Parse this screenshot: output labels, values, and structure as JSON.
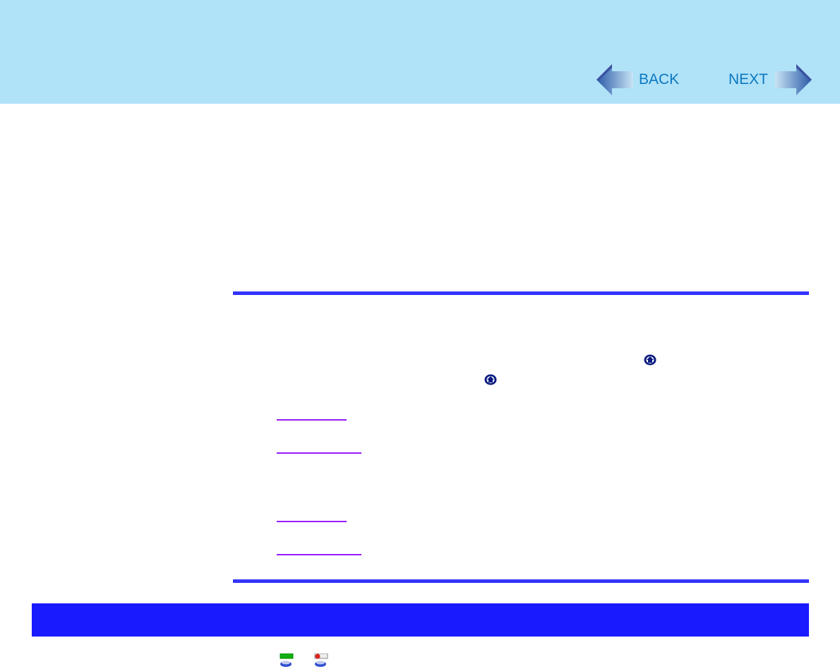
{
  "header": {
    "background": "#b0e2f8"
  },
  "nav": {
    "back_label": "BACK",
    "next_label": "NEXT",
    "text_color": "#0a78c0"
  },
  "icons": [
    "home-icon",
    "home-icon",
    "battery-full-icon",
    "battery-error-icon"
  ],
  "colors": {
    "rule": "#3333ff",
    "section_bar": "#1a1aff",
    "link": "#9a1aff"
  }
}
